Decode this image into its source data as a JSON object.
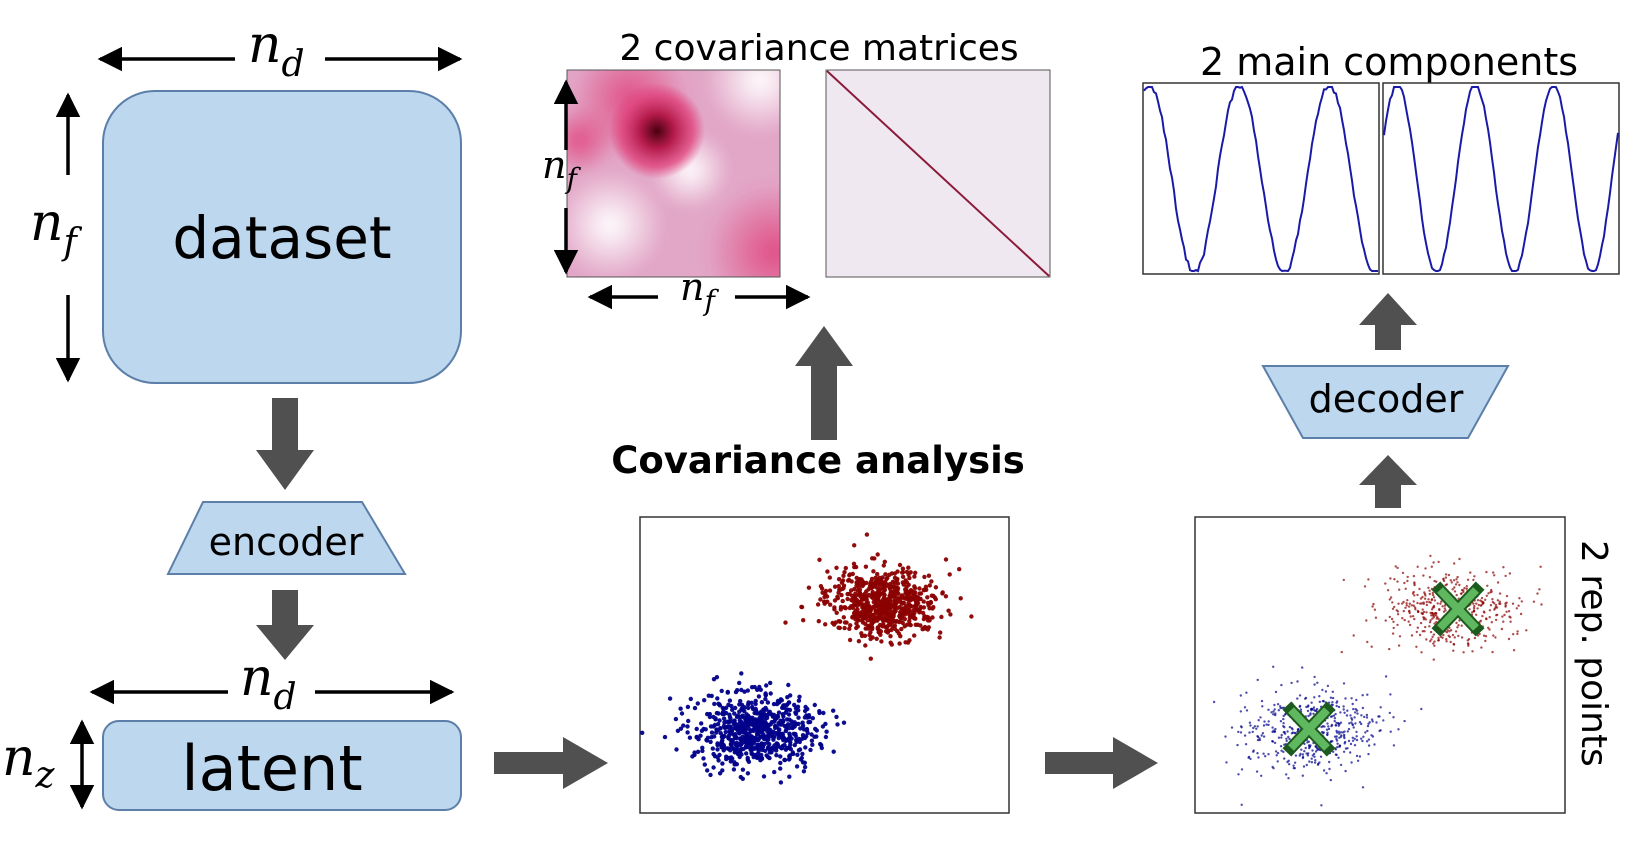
{
  "dataset_label": "dataset",
  "latent_label": "latent",
  "encoder_label": "encoder",
  "decoder_label": "decoder",
  "covariance_title": "2 covariance matrices",
  "components_title": "2 main components",
  "analysis_label": "Covariance analysis",
  "rep_points_label": "2 rep. points",
  "dim_symbols": {
    "n": "n",
    "d": "d",
    "f": "f",
    "z": "z"
  },
  "colors": {
    "box_fill": "#bdd7ee",
    "box_stroke": "#5b7fa8",
    "arrow_fill": "#505050",
    "cluster_red": "#8b0000",
    "cluster_blue": "#00008b",
    "marker_green": "#5fb85f",
    "curve_blue": "#1a1aa8",
    "cov_pink": "#d8407a",
    "cov_diag": "#8b1a3a"
  },
  "icons": {
    "rep_marker": "x-cross-icon"
  }
}
